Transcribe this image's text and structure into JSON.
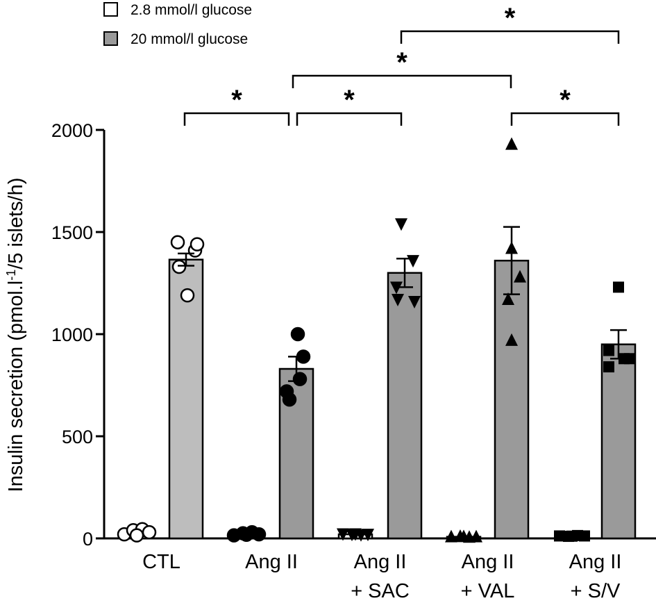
{
  "chart_data": {
    "type": "bar",
    "ylabel_main": "Insulin secretion (pmol.l",
    "ylabel_sup": "-1",
    "ylabel_rest": "/5 islets/h)",
    "ylim": [
      0,
      2000
    ],
    "yticks": [
      "0",
      "500",
      "1000",
      "1500",
      "2000"
    ],
    "categories": [
      {
        "line1": "CTL",
        "line2": ""
      },
      {
        "line1": "Ang II",
        "line2": ""
      },
      {
        "line1": "Ang II",
        "line2": "+ SAC"
      },
      {
        "line1": "Ang II",
        "line2": "+ VAL"
      },
      {
        "line1": "Ang II",
        "line2": "+ S/V"
      }
    ],
    "legend": [
      {
        "label": "2.8 mmol/l glucose",
        "color": "#ffffff"
      },
      {
        "label": "20 mmol/l glucose",
        "color": "#9a9a9a"
      }
    ],
    "series": [
      {
        "name": "2.8 mmol/l glucose",
        "values": [
          30,
          25,
          20,
          8,
          12
        ],
        "sem": [
          0,
          0,
          0,
          0,
          0
        ],
        "points": [
          [
            20,
            40,
            45,
            30,
            15
          ],
          [
            15,
            25,
            30,
            20,
            18
          ],
          [
            22,
            20,
            18,
            20,
            22
          ],
          [
            8,
            10,
            6,
            8,
            9
          ],
          [
            12,
            10,
            14,
            12,
            11
          ]
        ]
      },
      {
        "name": "20 mmol/l glucose",
        "values": [
          1365,
          830,
          1300,
          1360,
          950
        ],
        "sem": [
          30,
          60,
          70,
          165,
          70
        ],
        "points": [
          [
            1450,
            1410,
            1440,
            1330,
            1190
          ],
          [
            1000,
            780,
            720,
            680,
            890
          ],
          [
            1540,
            1360,
            1230,
            1160,
            1170
          ],
          [
            1930,
            1420,
            1280,
            1170,
            970
          ],
          [
            1230,
            920,
            880,
            880,
            840
          ]
        ]
      }
    ],
    "markers": [
      "circle",
      "circle",
      "triangle-down",
      "triangle-up",
      "square"
    ],
    "marker_fill": [
      "#ffffff",
      "#000000",
      "#000000",
      "#000000",
      "#000000"
    ],
    "bar_colors": {
      "low": "#ffffff",
      "high_first": "#bdbdbd",
      "high": "#9a9a9a"
    },
    "significance": [
      {
        "from": [
          0,
          1
        ],
        "to": [
          1,
          1
        ],
        "label": "*"
      },
      {
        "from": [
          1,
          1
        ],
        "to": [
          2,
          1
        ],
        "label": "*"
      },
      {
        "from": [
          1,
          1
        ],
        "to": [
          3,
          1
        ],
        "label": "*"
      },
      {
        "from": [
          2,
          1
        ],
        "to": [
          4,
          1
        ],
        "label": "*"
      },
      {
        "from": [
          3,
          1
        ],
        "to": [
          4,
          1
        ],
        "label": "*"
      }
    ]
  }
}
